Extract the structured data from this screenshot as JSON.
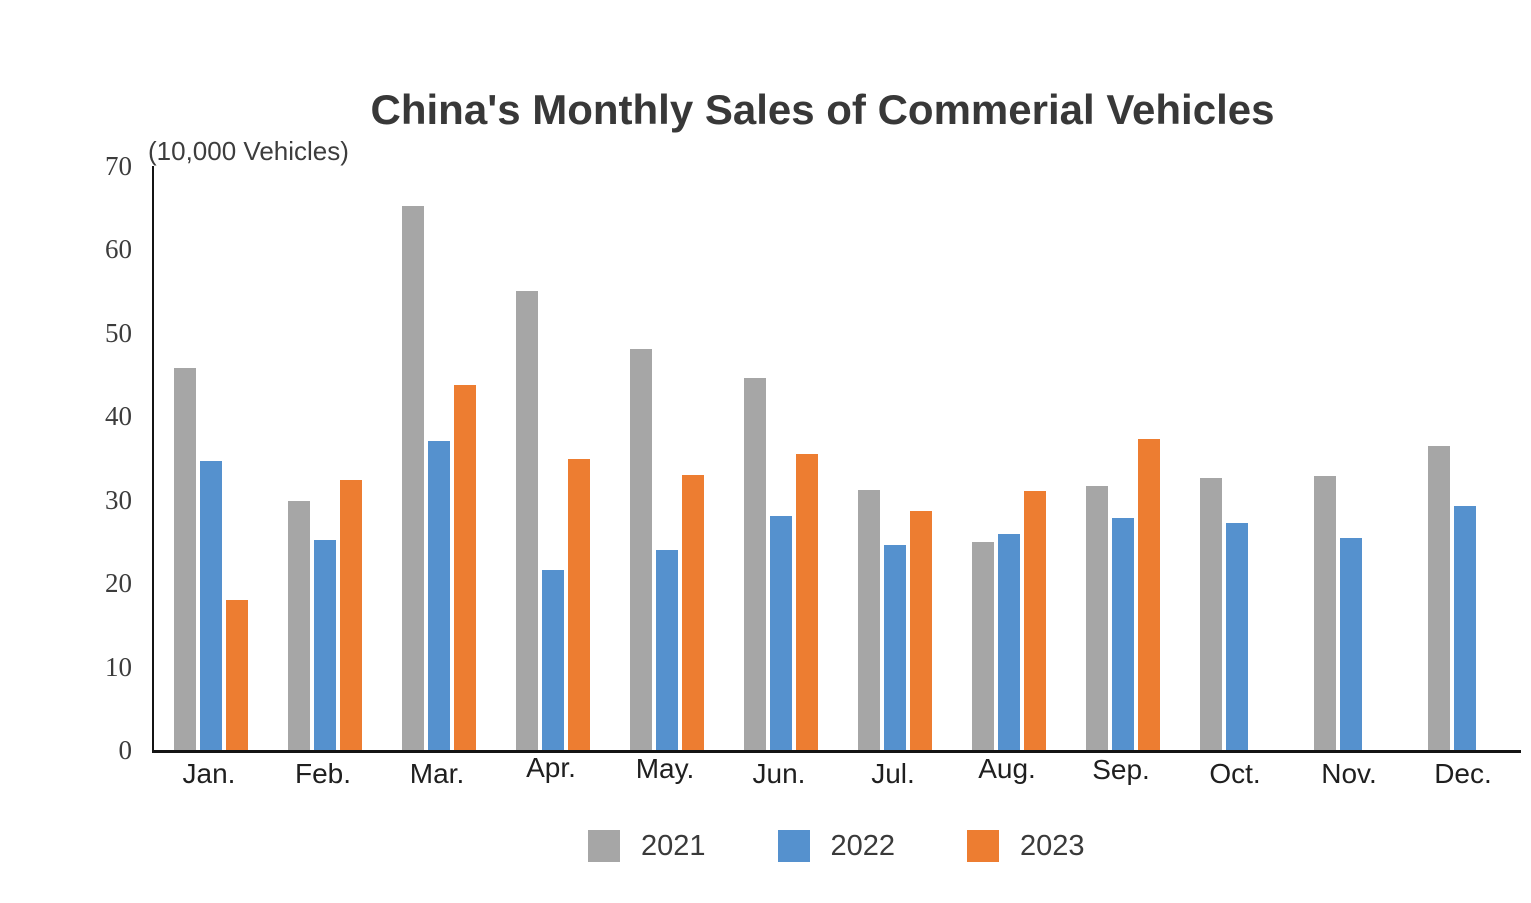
{
  "title": "China's Monthly Sales of Commerial Vehicles",
  "unit_label": "(10,000 Vehicles)",
  "colors": {
    "series_2021": "#a6a6a6",
    "series_2022": "#5591ce",
    "series_2023": "#ed7d31",
    "axis": "#141414",
    "title_text": "#383838",
    "tick_text": "#3c3c3c",
    "background": "#ffffff"
  },
  "chart_data": {
    "type": "bar",
    "title": "China's Monthly Sales of Commerial Vehicles",
    "subtitle": "(10,000 Vehicles)",
    "categories": [
      "Jan.",
      "Feb.",
      "Mar.",
      "Apr.",
      "May.",
      "Jun.",
      "Jul.",
      "Aug.",
      "Sep.",
      "Oct.",
      "Nov.",
      "Dec."
    ],
    "series": [
      {
        "name": "2021",
        "color": "#a6a6a6",
        "values": [
          45.8,
          29.8,
          65.2,
          55.0,
          48.1,
          44.6,
          31.2,
          24.9,
          31.7,
          32.6,
          32.9,
          36.4
        ]
      },
      {
        "name": "2022",
        "color": "#5591ce",
        "values": [
          34.6,
          25.2,
          37.0,
          21.6,
          24.0,
          28.1,
          24.6,
          25.9,
          27.8,
          27.2,
          25.4,
          29.2
        ]
      },
      {
        "name": "2023",
        "color": "#ed7d31",
        "values": [
          18.0,
          32.4,
          43.7,
          34.9,
          33.0,
          35.5,
          28.7,
          31.0,
          37.3,
          null,
          null,
          null
        ]
      }
    ],
    "xlabel": "",
    "ylabel": "(10,000 Vehicles)",
    "ylim": [
      0,
      70
    ],
    "yticks": [
      0,
      10,
      20,
      30,
      40,
      50,
      60,
      70
    ],
    "grid": false,
    "legend_position": "bottom"
  }
}
